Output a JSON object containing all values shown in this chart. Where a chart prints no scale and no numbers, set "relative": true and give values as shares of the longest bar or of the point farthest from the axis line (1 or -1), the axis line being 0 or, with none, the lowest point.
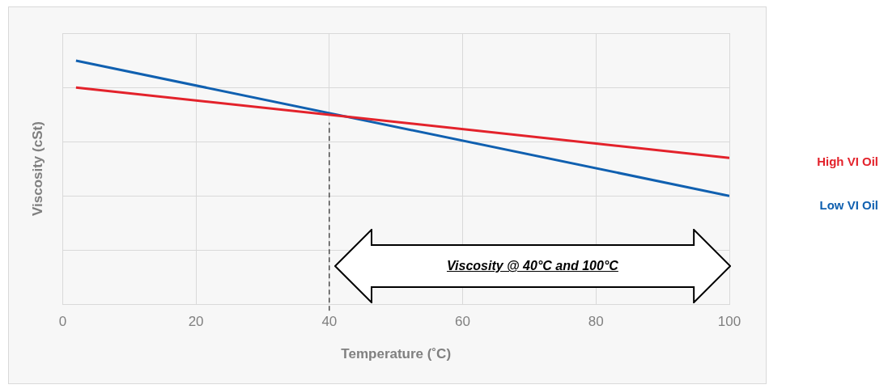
{
  "chart_data": {
    "type": "line",
    "relative": true,
    "xlabel": "Temperature (˚C)",
    "ylabel": "Viscosity (cSt)",
    "x": [
      2,
      100
    ],
    "xlim": [
      0,
      100
    ],
    "xticks": [
      0,
      20,
      40,
      60,
      80,
      100
    ],
    "grid": true,
    "legend": "right",
    "marker": "none",
    "line_style": "solid",
    "series": [
      {
        "name": "High VI Oil",
        "color": "#e3222b",
        "values": [
          0.89,
          0.601
        ]
      },
      {
        "name": "Low VI Oil",
        "color": "#1060b0",
        "values": [
          1,
          0.445
        ]
      }
    ],
    "ref_lines": [
      {
        "axis": "x",
        "value": 40,
        "line_style": "dashed",
        "color": "#000000"
      }
    ],
    "annotations": [
      "Viscosity @ 40°C and 100°C"
    ]
  }
}
